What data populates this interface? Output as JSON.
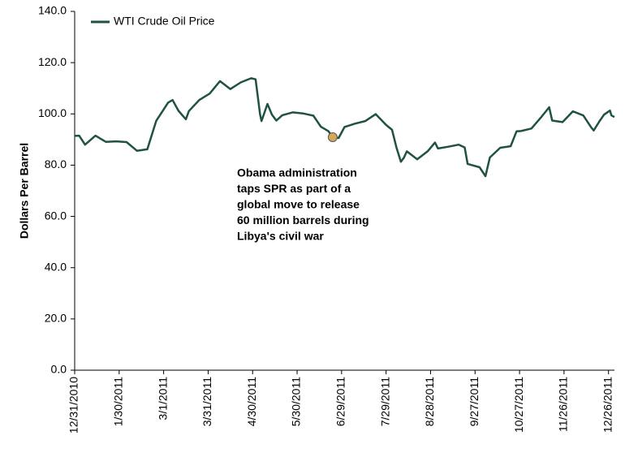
{
  "chart_data": {
    "type": "line",
    "y_label": "Dollars Per Barrel",
    "xlim": [
      "12/31/2010",
      "12/30/2011"
    ],
    "xticks": [
      "12/31/2010",
      "1/30/2011",
      "3/1/2011",
      "3/31/2011",
      "4/30/2011",
      "5/30/2011",
      "6/29/2011",
      "7/29/2011",
      "8/28/2011",
      "9/27/2011",
      "10/27/2011",
      "11/26/2011",
      "12/26/2011"
    ],
    "ylim": [
      0,
      140
    ],
    "yticks": [
      {
        "value": 0,
        "label": "0.0"
      },
      {
        "value": 20,
        "label": "20.0"
      },
      {
        "value": 40,
        "label": "40.0"
      },
      {
        "value": 60,
        "label": "60.0"
      },
      {
        "value": 80,
        "label": "80.0"
      },
      {
        "value": 100,
        "label": "100.0"
      },
      {
        "value": 120,
        "label": "120.0"
      },
      {
        "value": 140,
        "label": "140.0"
      }
    ],
    "x": [
      "12/31/2010",
      "1/3/2011",
      "1/7/2011",
      "1/14/2011",
      "1/21/2011",
      "1/28/2011",
      "2/4/2011",
      "2/11/2011",
      "2/18/2011",
      "2/22/2011",
      "2/24/2011",
      "3/4/2011",
      "3/7/2011",
      "3/11/2011",
      "3/16/2011",
      "3/18/2011",
      "3/25/2011",
      "4/1/2011",
      "4/8/2011",
      "4/15/2011",
      "4/22/2011",
      "4/29/2011",
      "5/2/2011",
      "5/5/2011",
      "5/6/2011",
      "5/10/2011",
      "5/13/2011",
      "5/16/2011",
      "5/20/2011",
      "5/27/2011",
      "6/3/2011",
      "6/10/2011",
      "6/15/2011",
      "6/20/2011",
      "6/23/2011",
      "6/27/2011",
      "7/1/2011",
      "7/8/2011",
      "7/15/2011",
      "7/22/2011",
      "7/29/2011",
      "8/2/2011",
      "8/5/2011",
      "8/8/2011",
      "8/10/2011",
      "8/12/2011",
      "8/19/2011",
      "8/26/2011",
      "8/31/2011",
      "9/2/2011",
      "9/9/2011",
      "9/16/2011",
      "9/20/2011",
      "9/22/2011",
      "9/30/2011",
      "10/4/2011",
      "10/7/2011",
      "10/14/2011",
      "10/21/2011",
      "10/25/2011",
      "10/28/2011",
      "11/4/2011",
      "11/11/2011",
      "11/16/2011",
      "11/18/2011",
      "11/25/2011",
      "12/2/2011",
      "12/9/2011",
      "12/14/2011",
      "12/16/2011",
      "12/20/2011",
      "12/23/2011",
      "12/27/2011",
      "12/28/2011",
      "12/30/2011"
    ],
    "series": [
      {
        "name": "WTI Crude Oil Price",
        "color": "#1f5244",
        "values": [
          91.4,
          91.5,
          88.0,
          91.5,
          89.1,
          89.3,
          89.0,
          85.6,
          86.2,
          93.6,
          97.3,
          104.4,
          105.4,
          101.2,
          97.9,
          101.1,
          105.4,
          107.9,
          112.8,
          109.7,
          112.3,
          113.9,
          113.5,
          99.8,
          97.2,
          103.9,
          99.7,
          97.4,
          99.5,
          100.6,
          100.2,
          99.3,
          95.0,
          93.3,
          91.0,
          90.6,
          94.9,
          96.2,
          97.2,
          99.9,
          95.7,
          93.8,
          86.9,
          81.3,
          82.9,
          85.4,
          82.3,
          85.4,
          88.8,
          86.5,
          87.2,
          88.0,
          86.9,
          80.5,
          79.2,
          75.7,
          83.0,
          86.8,
          87.4,
          93.2,
          93.3,
          94.3,
          99.0,
          102.6,
          97.4,
          96.8,
          101.0,
          99.4,
          95.0,
          93.5,
          97.2,
          99.7,
          101.3,
          99.4,
          98.8
        ]
      }
    ],
    "annotation": {
      "lines": [
        "Obama administration",
        "taps SPR as part of a",
        "global move to release",
        "60 million barrels during",
        "Libya's civil war"
      ],
      "x": "6/23/2011",
      "y": 90.9
    },
    "marker_color": "#d4a85a",
    "legend": "top-left",
    "grid": false
  }
}
